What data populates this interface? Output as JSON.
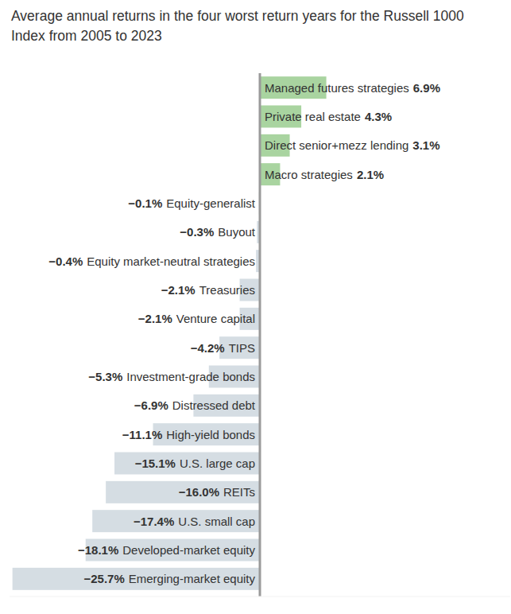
{
  "chart_data": {
    "type": "bar",
    "orientation": "horizontal",
    "title": "Average annual returns in the four worst return years for the Russell 1000 Index from 2005 to 2023",
    "categories": [
      "Managed futures strategies",
      "Private real estate",
      "Direct senior+mezz lending",
      "Macro strategies",
      "Equity-generalist",
      "Buyout",
      "Equity market-neutral strategies",
      "Treasuries",
      "Venture capital",
      "TIPS",
      "Investment-grade bonds",
      "Distressed debt",
      "High-yield bonds",
      "U.S. large cap",
      "REITs",
      "U.S. small cap",
      "Developed-market equity",
      "Emerging-market equity"
    ],
    "values": [
      6.9,
      4.3,
      3.1,
      2.1,
      -0.1,
      -0.3,
      -0.4,
      -2.1,
      -2.1,
      -4.2,
      -5.3,
      -6.9,
      -11.1,
      -15.1,
      -16.0,
      -17.4,
      -18.1,
      -25.7
    ],
    "value_labels": [
      "6.9%",
      "4.3%",
      "3.1%",
      "2.1%",
      "−0.1%",
      "−0.3%",
      "−0.4%",
      "−2.1%",
      "−2.1%",
      "−4.2%",
      "−5.3%",
      "−6.9%",
      "−11.1%",
      "−15.1%",
      "−16.0%",
      "−17.4%",
      "−18.1%",
      "−25.7%"
    ],
    "colors": [
      "#a9d4a0",
      "#a9d4a0",
      "#a9d4a0",
      "#a9d4a0",
      "#d5dde3",
      "#d5dde3",
      "#d5dde3",
      "#d5dde3",
      "#d5dde3",
      "#d5dde3",
      "#d5dde3",
      "#d5dde3",
      "#d5dde3",
      "#d5dde3",
      "#d5dde3",
      "#d5dde3",
      "#d5dde3",
      "#d5dde3"
    ],
    "xlim": [
      -26,
      26
    ],
    "data_labels": true,
    "tick_labels": false,
    "grid": false
  }
}
